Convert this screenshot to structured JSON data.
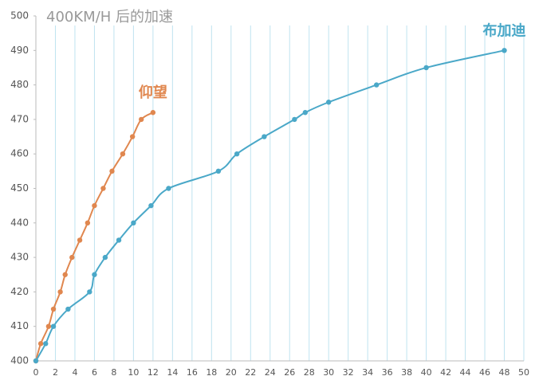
{
  "chart_data": {
    "type": "line",
    "title": "400KM/H 后的加速",
    "xlim": [
      0,
      50
    ],
    "xticks": [
      0,
      2,
      4,
      6,
      8,
      10,
      12,
      14,
      16,
      18,
      20,
      22,
      24,
      26,
      28,
      30,
      32,
      34,
      36,
      38,
      40,
      42,
      44,
      46,
      48,
      50
    ],
    "ylim": [
      400,
      500
    ],
    "yticks": [
      400,
      410,
      420,
      430,
      440,
      450,
      460,
      470,
      480,
      490,
      500
    ],
    "grid": true,
    "series": [
      {
        "name": "仰望",
        "color": "#e0874f",
        "x": [
          0,
          0.5,
          1.3,
          1.8,
          2.5,
          3,
          3.7,
          4.5,
          5.3,
          6,
          6.9,
          7.8,
          8.9,
          9.9,
          10.8,
          12
        ],
        "values": [
          400,
          405,
          410,
          415,
          420,
          425,
          430,
          435,
          440,
          445,
          450,
          455,
          460,
          465,
          470,
          472
        ]
      },
      {
        "name": "布加迪",
        "color": "#4aa8c8",
        "x": [
          0,
          1,
          1.8,
          3.3,
          5.5,
          6,
          7.1,
          8.5,
          10,
          11.8,
          13.6,
          18.7,
          20.6,
          23.4,
          26.5,
          27.6,
          30,
          34.9,
          40,
          48
        ],
        "values": [
          400,
          405,
          410,
          415,
          420,
          425,
          430,
          435,
          440,
          445,
          450,
          455,
          460,
          465,
          470,
          472,
          475,
          480,
          485,
          490
        ]
      }
    ]
  }
}
